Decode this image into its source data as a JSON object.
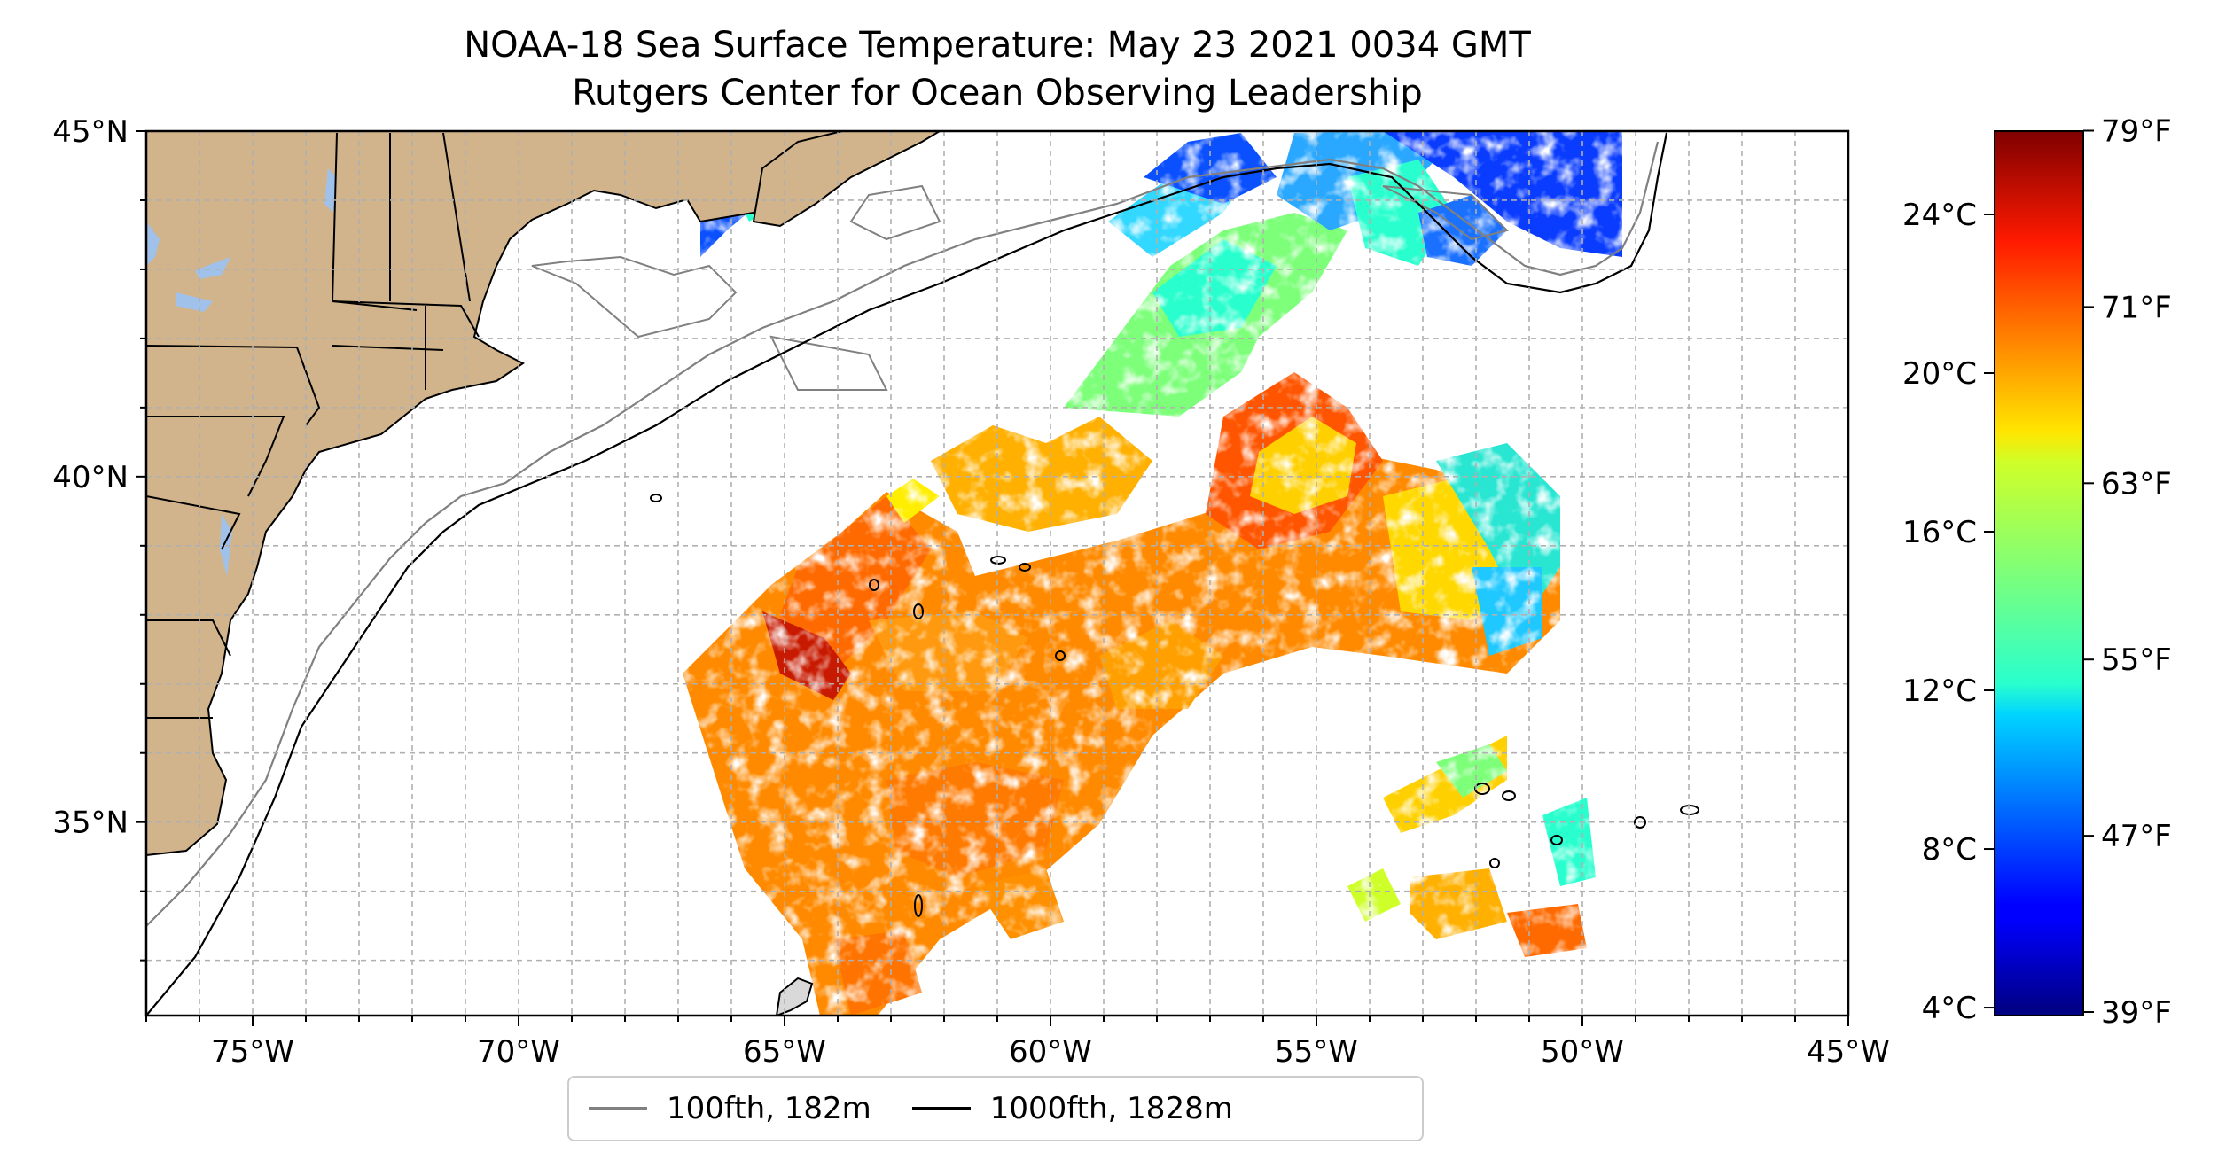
{
  "title": "NOAA-18 Sea Surface Temperature: May 23 2021 0034 GMT",
  "subtitle": "Rutgers Center for Ocean Observing Leadership",
  "map": {
    "lon_range": [
      -77,
      -45
    ],
    "lat_range": [
      32.2,
      45
    ],
    "lon_ticks": [
      {
        "value": -75,
        "label": "75°W"
      },
      {
        "value": -70,
        "label": "70°W"
      },
      {
        "value": -65,
        "label": "65°W"
      },
      {
        "value": -60,
        "label": "60°W"
      },
      {
        "value": -55,
        "label": "55°W"
      },
      {
        "value": -50,
        "label": "50°W"
      },
      {
        "value": -45,
        "label": "45°W"
      }
    ],
    "lat_ticks": [
      {
        "value": 35,
        "label": "35°N"
      },
      {
        "value": 40,
        "label": "40°N"
      },
      {
        "value": 45,
        "label": "45°N"
      }
    ],
    "grid": true,
    "land_color": "#d2b48c",
    "lake_color": "#9fc1ea"
  },
  "colorbar": {
    "colormap": "jet",
    "celsius_range": [
      3.8,
      26.1
    ],
    "celsius_ticks": [
      {
        "value": 4,
        "label": "4°C"
      },
      {
        "value": 8,
        "label": "8°C"
      },
      {
        "value": 12,
        "label": "12°C"
      },
      {
        "value": 16,
        "label": "16°C"
      },
      {
        "value": 20,
        "label": "20°C"
      },
      {
        "value": 24,
        "label": "24°C"
      }
    ],
    "fahrenheit_ticks": [
      {
        "value": 39,
        "label": "39°F"
      },
      {
        "value": 47,
        "label": "47°F"
      },
      {
        "value": 55,
        "label": "55°F"
      },
      {
        "value": 63,
        "label": "63°F"
      },
      {
        "value": 71,
        "label": "71°F"
      },
      {
        "value": 79,
        "label": "79°F"
      }
    ]
  },
  "legend": {
    "items": [
      {
        "label": "100fth, 182m",
        "color": "#808080"
      },
      {
        "label": "1000fth, 1828m",
        "color": "#000000"
      }
    ]
  }
}
